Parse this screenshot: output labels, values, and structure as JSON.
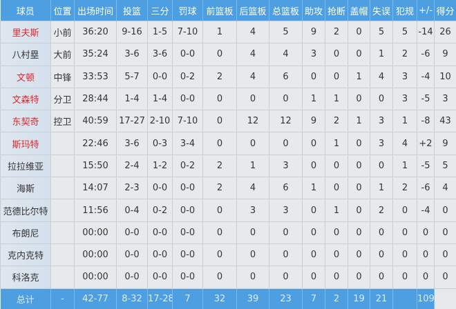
{
  "headers": [
    "球员",
    "位置",
    "出场时间",
    "投篮",
    "三分",
    "罚球",
    "前篮板",
    "后篮板",
    "总篮板",
    "助攻",
    "抢断",
    "盖帽",
    "失误",
    "犯规",
    "+/-",
    "得分"
  ],
  "colors": {
    "header_bg": "#4e9fe2",
    "starter_name": "#e0262c",
    "cell_bg": "#e7eaed"
  },
  "rows": [
    {
      "name": "里夫斯",
      "red": true,
      "cells": [
        "小前",
        "36:20",
        "9-16",
        "1-5",
        "7-10",
        "1",
        "4",
        "5",
        "9",
        "2",
        "0",
        "5",
        "5",
        "-14",
        "26"
      ]
    },
    {
      "name": "八村塁",
      "red": false,
      "cells": [
        "大前",
        "35:24",
        "3-6",
        "3-6",
        "0-0",
        "0",
        "4",
        "4",
        "3",
        "0",
        "0",
        "1",
        "2",
        "-6",
        "9"
      ]
    },
    {
      "name": "文顿",
      "red": true,
      "cells": [
        "中锋",
        "33:53",
        "5-7",
        "0-0",
        "0-2",
        "2",
        "4",
        "6",
        "0",
        "0",
        "1",
        "4",
        "3",
        "-4",
        "10"
      ]
    },
    {
      "name": "文森特",
      "red": true,
      "cells": [
        "分卫",
        "28:44",
        "1-4",
        "1-4",
        "0-0",
        "0",
        "0",
        "0",
        "1",
        "1",
        "0",
        "0",
        "3",
        "-5",
        "3"
      ]
    },
    {
      "name": "东契奇",
      "red": true,
      "cells": [
        "控卫",
        "40:59",
        "17-27",
        "2-10",
        "7-10",
        "0",
        "12",
        "12",
        "9",
        "2",
        "1",
        "3",
        "1",
        "-8",
        "43"
      ]
    },
    {
      "name": "斯玛特",
      "red": true,
      "cells": [
        "",
        "22:46",
        "3-6",
        "0-3",
        "3-4",
        "0",
        "0",
        "0",
        "0",
        "1",
        "0",
        "3",
        "4",
        "+2",
        "9"
      ]
    },
    {
      "name": "拉拉维亚",
      "red": false,
      "cells": [
        "",
        "15:50",
        "2-4",
        "1-2",
        "0-2",
        "2",
        "1",
        "3",
        "0",
        "0",
        "0",
        "0",
        "1",
        "-5",
        "5"
      ]
    },
    {
      "name": "海斯",
      "red": false,
      "cells": [
        "",
        "14:07",
        "2-3",
        "0-0",
        "0-0",
        "2",
        "4",
        "6",
        "1",
        "0",
        "0",
        "1",
        "2",
        "-6",
        "4"
      ]
    },
    {
      "name": "范德比尔特",
      "red": false,
      "cells": [
        "",
        "11:56",
        "0-4",
        "0-2",
        "0-0",
        "0",
        "3",
        "3",
        "0",
        "1",
        "0",
        "2",
        "0",
        "-4",
        "0"
      ]
    },
    {
      "name": "布朗尼",
      "red": false,
      "cells": [
        "",
        "00:00",
        "0-0",
        "0-0",
        "0-0",
        "0",
        "0",
        "0",
        "0",
        "0",
        "0",
        "0",
        "0",
        "0",
        "0"
      ]
    },
    {
      "name": "克内克特",
      "red": false,
      "cells": [
        "",
        "00:00",
        "0-0",
        "0-0",
        "0-0",
        "0",
        "0",
        "0",
        "0",
        "0",
        "0",
        "0",
        "0",
        "0",
        "0"
      ]
    },
    {
      "name": "科洛克",
      "red": false,
      "cells": [
        "",
        "00:00",
        "0-0",
        "0-0",
        "0-0",
        "0",
        "0",
        "0",
        "0",
        "0",
        "0",
        "0",
        "0",
        "0",
        "0"
      ]
    }
  ],
  "total": {
    "label": "总计",
    "cells": [
      "",
      "-",
      "42-77",
      "8-32",
      "17-28",
      "7",
      "32",
      "39",
      "23",
      "7",
      "2",
      "19",
      "21",
      "",
      "109"
    ]
  }
}
